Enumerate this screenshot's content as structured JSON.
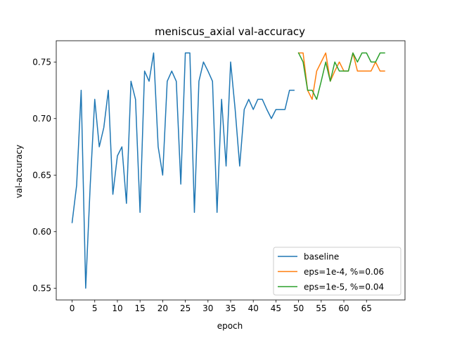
{
  "chart_data": {
    "type": "line",
    "title": "meniscus_axial val-accuracy",
    "xlabel": "epoch",
    "ylabel": "val-accuracy",
    "xlim": [
      -3.5,
      73.5
    ],
    "ylim": [
      0.5396,
      0.7688
    ],
    "xticks": [
      0,
      5,
      10,
      15,
      20,
      25,
      30,
      35,
      40,
      45,
      50,
      55,
      60,
      65
    ],
    "yticks": [
      0.55,
      0.6,
      0.65,
      0.7,
      0.75
    ],
    "ytick_labels": [
      "0.55",
      "0.60",
      "0.65",
      "0.70",
      "0.75"
    ],
    "grid": false,
    "legend_position": "lower-right",
    "series": [
      {
        "name": "baseline",
        "color": "#1f77b4",
        "x": [
          0,
          1,
          2,
          3,
          4,
          5,
          6,
          7,
          8,
          9,
          10,
          11,
          12,
          13,
          14,
          15,
          16,
          17,
          18,
          19,
          20,
          21,
          22,
          23,
          24,
          25,
          26,
          27,
          28,
          29,
          30,
          31,
          32,
          33,
          34,
          35,
          36,
          37,
          38,
          39,
          40,
          41,
          42,
          43,
          44,
          45,
          46,
          47,
          48,
          49
        ],
        "y": [
          0.608,
          0.641,
          0.725,
          0.55,
          0.641,
          0.717,
          0.675,
          0.692,
          0.725,
          0.633,
          0.667,
          0.675,
          0.625,
          0.733,
          0.717,
          0.617,
          0.742,
          0.733,
          0.758,
          0.675,
          0.65,
          0.733,
          0.742,
          0.733,
          0.642,
          0.758,
          0.758,
          0.617,
          0.733,
          0.75,
          0.742,
          0.733,
          0.617,
          0.717,
          0.658,
          0.75,
          0.708,
          0.658,
          0.708,
          0.717,
          0.708,
          0.717,
          0.717,
          0.708,
          0.7,
          0.708,
          0.708,
          0.708,
          0.725,
          0.725
        ]
      },
      {
        "name": "eps=1e-4, %=0.06",
        "color": "#ff7f0e",
        "x": [
          50,
          51,
          52,
          53,
          54,
          55,
          56,
          57,
          58,
          59,
          60,
          61,
          62,
          63,
          64,
          65,
          66,
          67,
          68,
          69
        ],
        "y": [
          0.758,
          0.758,
          0.725,
          0.717,
          0.742,
          0.75,
          0.758,
          0.733,
          0.742,
          0.75,
          0.742,
          0.742,
          0.758,
          0.742,
          0.742,
          0.742,
          0.742,
          0.75,
          0.742,
          0.742
        ]
      },
      {
        "name": "eps=1e-5, %=0.04",
        "color": "#2ca02c",
        "x": [
          50,
          51,
          52,
          53,
          54,
          55,
          56,
          57,
          58,
          59,
          60,
          61,
          62,
          63,
          64,
          65,
          66,
          67,
          68,
          69
        ],
        "y": [
          0.758,
          0.75,
          0.725,
          0.725,
          0.717,
          0.733,
          0.75,
          0.733,
          0.75,
          0.742,
          0.742,
          0.742,
          0.758,
          0.75,
          0.758,
          0.758,
          0.75,
          0.75,
          0.758,
          0.758
        ]
      }
    ]
  }
}
